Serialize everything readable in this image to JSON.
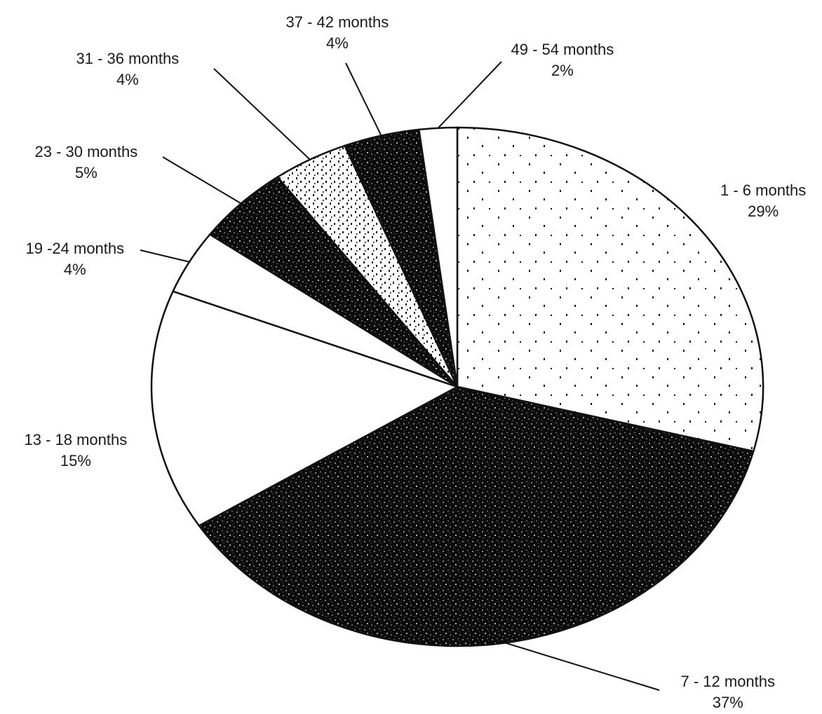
{
  "chart_data": {
    "type": "pie",
    "title": "",
    "slices": [
      {
        "label": "1 - 6 months",
        "percent_label": "29%",
        "value": 29,
        "fill": "#ffffff",
        "texture": "sparse-dots"
      },
      {
        "label": "7 - 12 months",
        "percent_label": "37%",
        "value": 37,
        "fill": "#0c0c0c",
        "texture": "speckled"
      },
      {
        "label": "13 - 18 months",
        "percent_label": "15%",
        "value": 15,
        "fill": "#ffffff",
        "texture": "none"
      },
      {
        "label": "19 -24 months",
        "percent_label": "4%",
        "value": 4,
        "fill": "#ffffff",
        "texture": "none"
      },
      {
        "label": "23 - 30 months",
        "percent_label": "5%",
        "value": 5,
        "fill": "#0c0c0c",
        "texture": "speckled"
      },
      {
        "label": "31 - 36 months",
        "percent_label": "4%",
        "value": 4,
        "fill": "#ffffff",
        "texture": "dense-dots"
      },
      {
        "label": "37 - 42 months",
        "percent_label": "4%",
        "value": 4,
        "fill": "#0c0c0c",
        "texture": "speckled"
      },
      {
        "label": "49 - 54 months",
        "percent_label": "2%",
        "value": 2,
        "fill": "#ffffff",
        "texture": "none"
      }
    ],
    "legend": "none"
  }
}
